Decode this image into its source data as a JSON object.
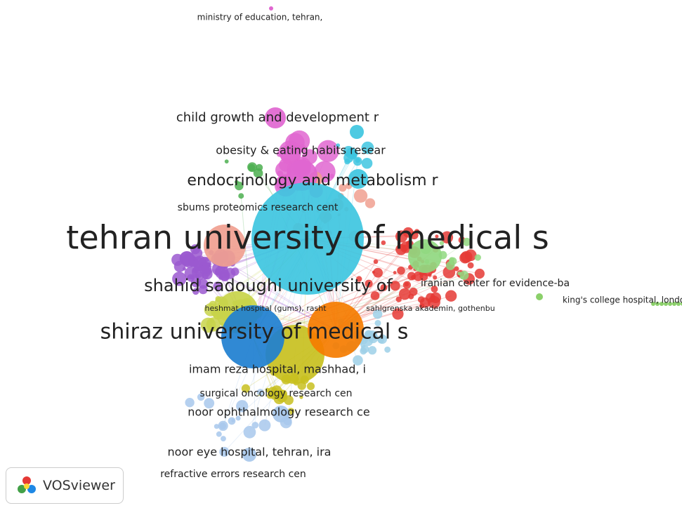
{
  "network": {
    "labels": [
      "ministry of education, tehran,",
      "child growth and development r",
      "obesity & eating habits resear",
      "endocrinology and metabolism r",
      "sbums proteomics research cent",
      "tehran university of medical s",
      "shahid sadoughi university of",
      "iranian center for evidence-ba",
      "heshmat hospital (gums), rasht",
      "sahlgrenska akademin, gothenbu",
      "king's college hospital, londo",
      "shiraz university of medical s",
      "imam reza hospital, mashhad, i",
      "surgical oncology research cen",
      "noor ophthalmology research ce",
      "noor eye hospital, tehran, ira",
      "refractive errors research cen"
    ]
  },
  "logo": {
    "text": "VOSviewer"
  }
}
